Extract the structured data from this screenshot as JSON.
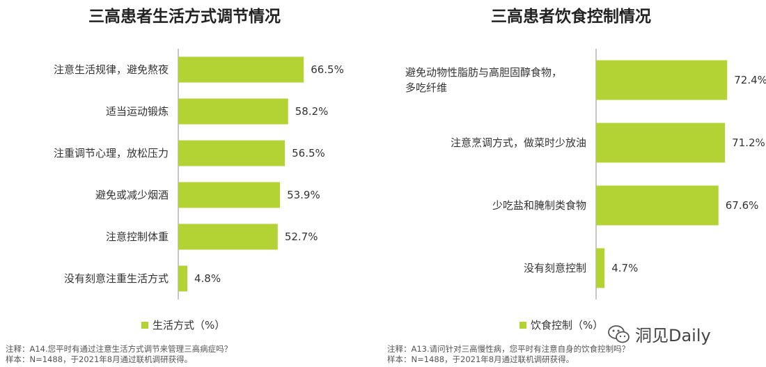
{
  "colors": {
    "bar": "#b3d334",
    "axis": "#8c8c8c"
  },
  "chart_data": [
    {
      "type": "bar",
      "orientation": "horizontal",
      "title": "三高患者生活方式调节情况",
      "categories": [
        "注意生活规律，避免熬夜",
        "适当运动锻炼",
        "注重调节心理，放松压力",
        "避免或减少烟酒",
        "注意控制体重",
        "没有刻意注重生活方式"
      ],
      "values": [
        66.5,
        58.2,
        56.5,
        53.9,
        52.7,
        4.8
      ],
      "value_labels": [
        "66.5%",
        "58.2%",
        "56.5%",
        "53.9%",
        "52.7%",
        "4.8%"
      ],
      "series": [
        {
          "name": "生活方式（%）",
          "values": [
            66.5,
            58.2,
            56.5,
            53.9,
            52.7,
            4.8
          ]
        }
      ],
      "legend": "bottom-center",
      "grid": false
    },
    {
      "type": "bar",
      "orientation": "horizontal",
      "title": "三高患者饮食控制情况",
      "categories": [
        "避免动物性脂肪与高胆固醇食物，多吃纤维",
        "注意烹调方式，做菜时少放油",
        "少吃盐和腌制类食物",
        "没有刻意控制"
      ],
      "category_lines": [
        [
          "避免动物性脂肪与高胆固醇食物，",
          "多吃纤维"
        ],
        [
          "注意烹调方式，做菜时少放油"
        ],
        [
          "少吃盐和腌制类食物"
        ],
        [
          "没有刻意控制"
        ]
      ],
      "values": [
        72.4,
        71.2,
        67.6,
        4.7
      ],
      "value_labels": [
        "72.4%",
        "71.2%",
        "67.6%",
        "4.7%"
      ],
      "series": [
        {
          "name": "饮食控制（%）",
          "values": [
            72.4,
            71.2,
            67.6,
            4.7
          ]
        }
      ],
      "legend": "bottom-center",
      "grid": false
    }
  ],
  "notes": {
    "left": [
      "注释：A14.您平时有通过注意生活方式调节来管理三高病症吗？",
      "样本：N=1488，于2021年8月通过联机调研获得。"
    ],
    "right": [
      "注释：A13.请问针对三高慢性病，您平时有注意自身的饮食控制吗？",
      "样本：N=1488，于2021年8月通过联机调研获得。"
    ]
  },
  "watermark": {
    "icon": "wechat-icon",
    "text": "洞见Daily"
  }
}
